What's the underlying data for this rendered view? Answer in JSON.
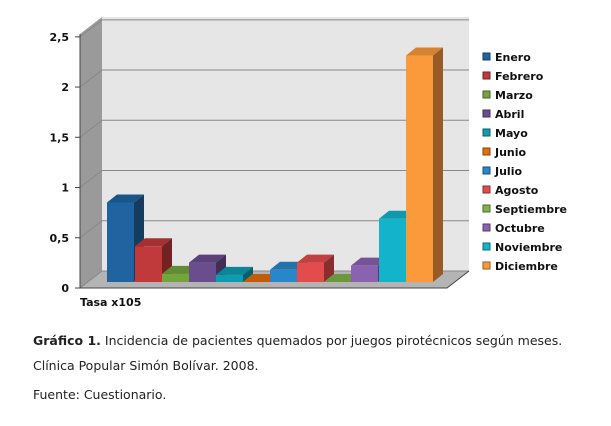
{
  "chart_data": {
    "type": "bar",
    "subtype": "3d-clustered-column",
    "categories": [
      "Enero",
      "Febrero",
      "Marzo",
      "Abril",
      "Mayo",
      "Junio",
      "Julio",
      "Agosto",
      "Septiembre",
      "Octubre",
      "Noviembre",
      "Diciembre"
    ],
    "values": [
      0.78,
      0.35,
      0.08,
      0.19,
      0.07,
      0.0,
      0.12,
      0.19,
      0.0,
      0.16,
      0.62,
      2.22
    ],
    "colors": [
      "#1f64a0",
      "#c0393b",
      "#74a43c",
      "#6a4d8c",
      "#0f9cb0",
      "#e46c0a",
      "#2887c8",
      "#e24c4c",
      "#7fb347",
      "#8b62b0",
      "#13b3cc",
      "#fb9a3b"
    ],
    "xlabel": "Tasa x105",
    "ylabel": "",
    "ylim": [
      0,
      2.5
    ],
    "yticks": [
      "0",
      "0,5",
      "1",
      "1,5",
      "2",
      "2,5"
    ],
    "grid": true,
    "legend_position": "right"
  },
  "caption": {
    "label": "Gráfico 1.",
    "text": " Incidencia de pacientes quemados por juegos pirotécnicos según meses.",
    "line2": "Clínica Popular Simón Bolívar. 2008.",
    "source": "Fuente: Cuestionario."
  }
}
